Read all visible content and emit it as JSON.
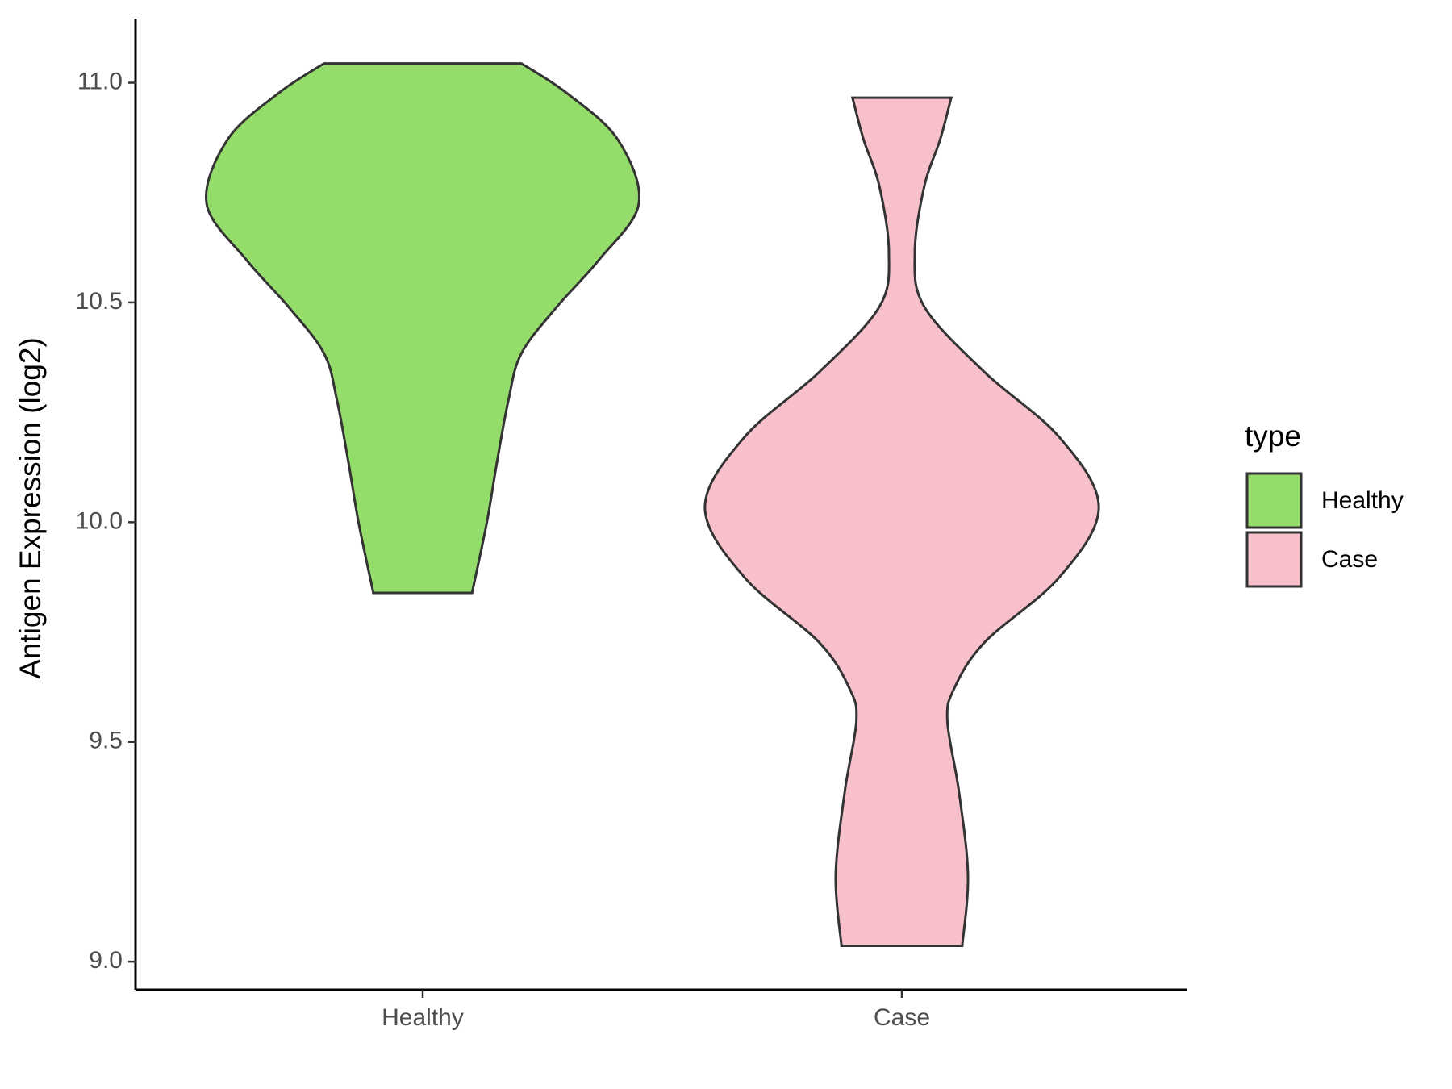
{
  "chart_data": {
    "type": "violin",
    "y_label": "Antigen Expression (log2)",
    "categories": [
      "Healthy",
      "Case"
    ],
    "ylim": [
      8.936,
      11.146
    ],
    "yticks": [
      {
        "value": 9,
        "label": "9.0"
      },
      9.5,
      {
        "value": 10,
        "label": "10.0"
      },
      10.5,
      {
        "value": 11,
        "label": "11.0"
      }
    ],
    "legend_title": "type",
    "legend": "right",
    "series": [
      {
        "name": "Healthy",
        "color": "#95dd6b",
        "y": [
          11.044,
          10.977,
          10.871,
          10.725,
          10.597,
          10.49,
          10.384,
          10.278,
          10.13,
          10.0,
          9.839
        ],
        "half_width": [
          0.206,
          0.3,
          0.407,
          0.451,
          0.368,
          0.28,
          0.206,
          0.179,
          0.154,
          0.134,
          0.103
        ]
      },
      {
        "name": "Case",
        "color": "#f7c0cb",
        "y": [
          10.966,
          10.871,
          10.765,
          10.612,
          10.49,
          10.341,
          10.193,
          10.034,
          9.875,
          9.727,
          9.621,
          9.547,
          9.388,
          9.197,
          9.036
        ],
        "half_width": [
          0.103,
          0.08,
          0.047,
          0.027,
          0.047,
          0.173,
          0.329,
          0.411,
          0.329,
          0.173,
          0.109,
          0.095,
          0.119,
          0.138,
          0.126
        ]
      }
    ]
  }
}
